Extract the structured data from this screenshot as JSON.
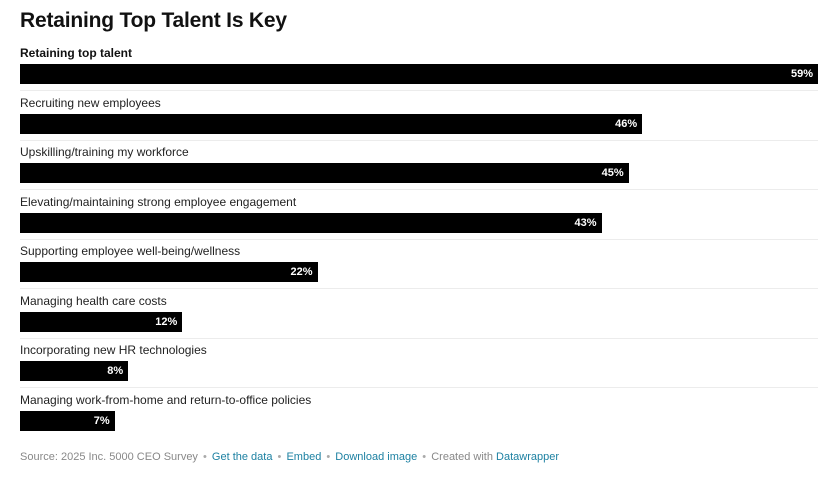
{
  "title": "Retaining Top Talent Is Key",
  "chart_data": {
    "type": "bar",
    "orientation": "horizontal",
    "categories": [
      "Retaining top talent",
      "Recruiting new employees",
      "Upskilling/training my workforce",
      "Elevating/maintaining strong employee engagement",
      "Supporting employee well-being/wellness",
      "Managing health care costs",
      "Incorporating new HR technologies",
      "Managing work-from-home and return-to-office policies"
    ],
    "values": [
      59,
      46,
      45,
      43,
      22,
      12,
      8,
      7
    ],
    "value_labels": [
      "59%",
      "46%",
      "45%",
      "43%",
      "22%",
      "12%",
      "8%",
      "7%"
    ],
    "xlim": [
      0,
      59
    ],
    "bar_color": "#000000",
    "highlighted_category_index": 0,
    "grid": false
  },
  "footer": {
    "source": "Source: 2025 Inc. 5000 CEO Survey",
    "sep": "•",
    "get_data": "Get the data",
    "embed": "Embed",
    "download": "Download image",
    "created_with": "Created with",
    "datawrapper": "Datawrapper"
  },
  "colors": {
    "link": "#1d81a2",
    "bar": "#000000",
    "footer_text": "#888888"
  }
}
